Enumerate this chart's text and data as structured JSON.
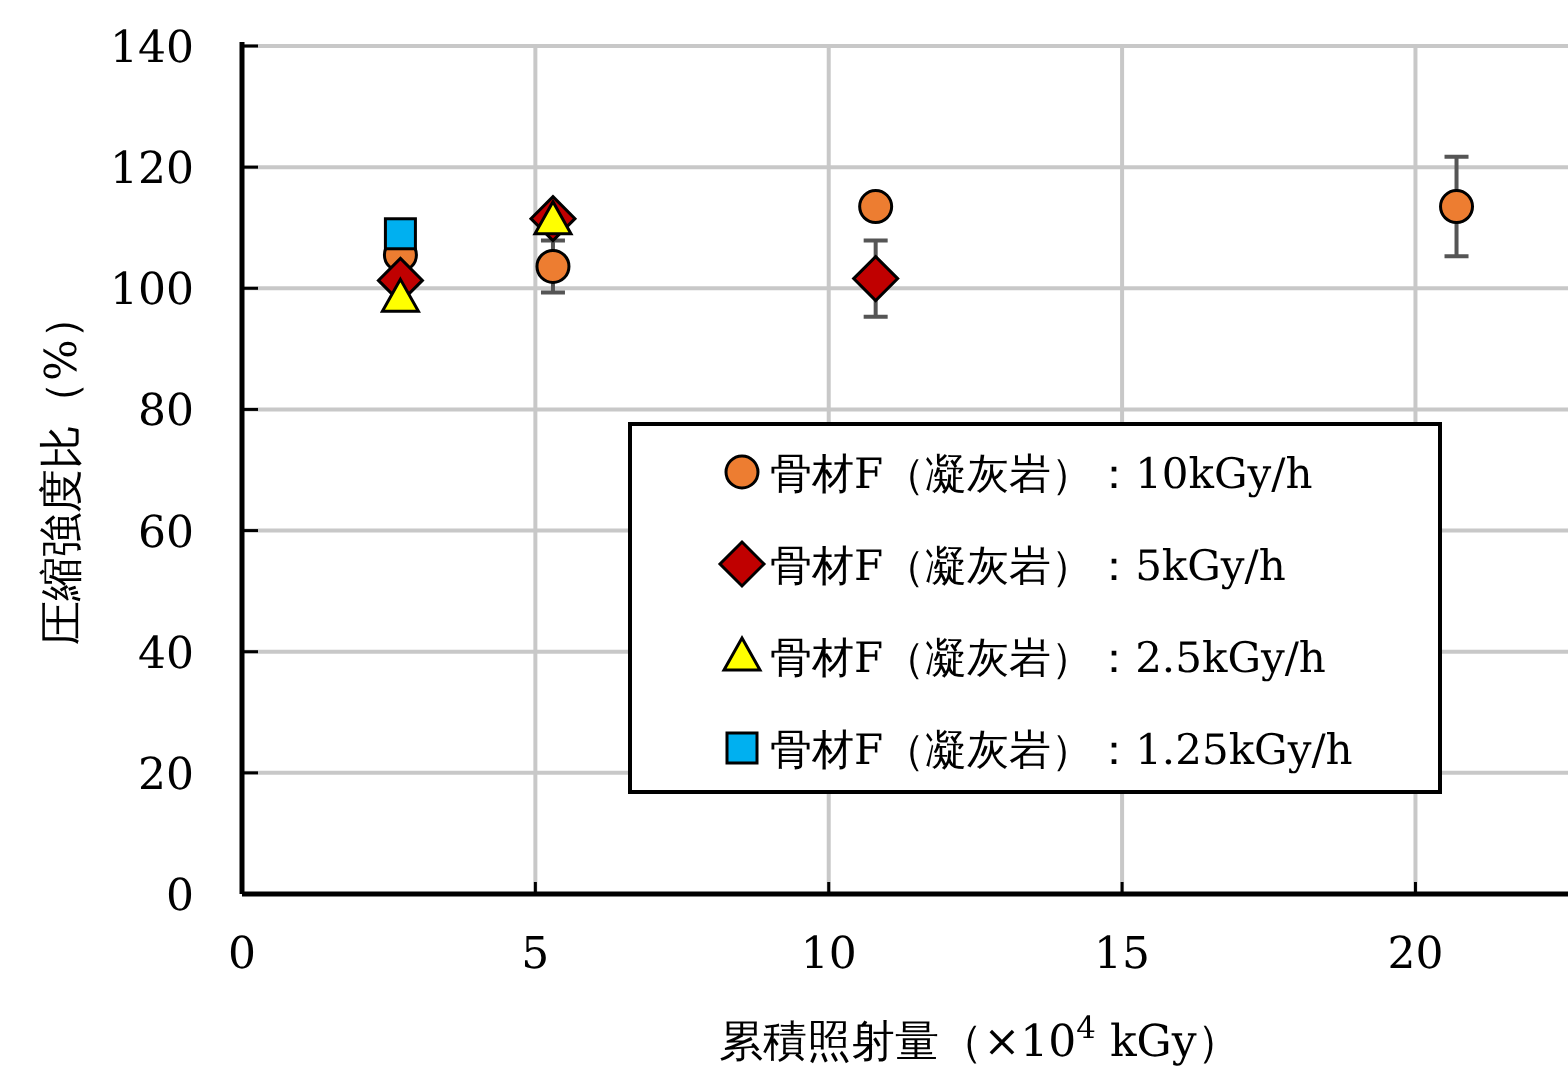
{
  "chart_data": {
    "type": "scatter",
    "xlabel": "累積照射量（×10$^{4}$ kGy）",
    "ylabel": "圧縮強度比（%）",
    "xlim": [
      0,
      22.6
    ],
    "ylim": [
      0,
      140
    ],
    "xticks": [
      0,
      5,
      10,
      15,
      20
    ],
    "yticks": [
      0,
      20,
      40,
      60,
      80,
      100,
      120,
      140
    ],
    "grid": true,
    "legend": "bottom right",
    "series": [
      {
        "name": "骨材F（凝灰岩）：10kGy/h",
        "color": "#ed7d31",
        "marker": "circle",
        "x": [
          2.7,
          5.3,
          10.8,
          20.7
        ],
        "values": [
          105.5,
          103.6,
          113.5,
          113.5
        ],
        "errors": [
          null,
          4.3,
          null,
          8.2
        ]
      },
      {
        "name": "骨材F（凝灰岩）：5kGy/h",
        "color": "#c00000",
        "marker": "diamond",
        "x": [
          2.7,
          5.3,
          10.8
        ],
        "values": [
          101.3,
          111.5,
          101.6
        ],
        "errors": [
          null,
          null,
          6.3
        ]
      },
      {
        "name": "骨材F（凝灰岩）：2.5kGy/h",
        "color": "#ffff00",
        "marker": "triangle",
        "x": [
          2.7,
          5.3
        ],
        "values": [
          98.5,
          111.3
        ]
      },
      {
        "name": "骨材F（凝灰岩）：1.25kGy/h",
        "color": "#00b0f0",
        "marker": "square",
        "x": [
          2.7
        ],
        "values": [
          109
        ]
      }
    ]
  }
}
